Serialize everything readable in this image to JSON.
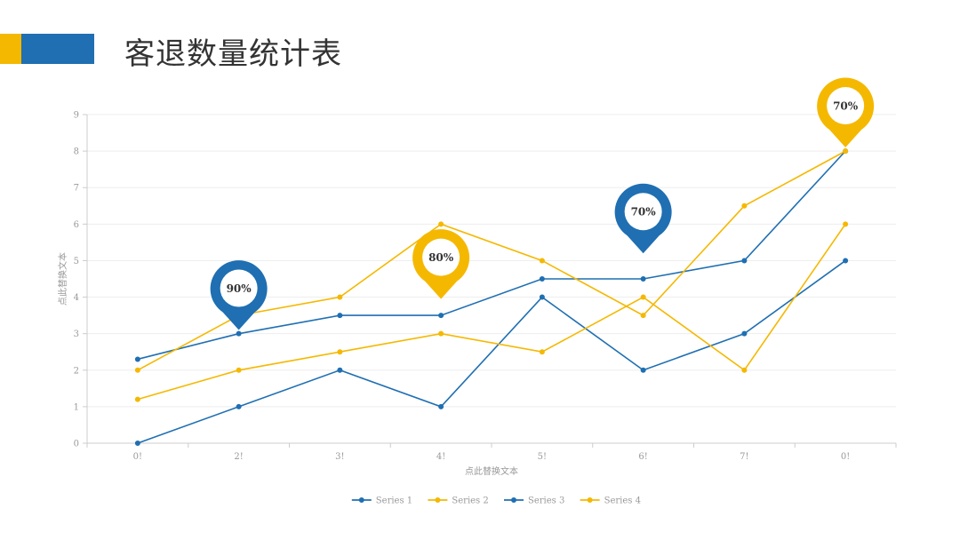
{
  "page": {
    "title": "客退数量统计表",
    "accent_colors": [
      "#F5B800",
      "#1F6FB2"
    ]
  },
  "chart_data": {
    "type": "line",
    "categories": [
      "0!",
      "2!",
      "3!",
      "4!",
      "5!",
      "6!",
      "7!",
      "0!"
    ],
    "xlabel": "点此替换文本",
    "ylabel": "点此替换文本",
    "ylim": [
      0,
      9
    ],
    "yticks": [
      0,
      1,
      2,
      3,
      4,
      5,
      6,
      7,
      8,
      9
    ],
    "grid": true,
    "legend_position": "bottom",
    "series": [
      {
        "name": "Series 1",
        "color": "#1F6FB2",
        "values": [
          0,
          1,
          2,
          1,
          4,
          2,
          3,
          5
        ]
      },
      {
        "name": "Series 2",
        "color": "#F5B800",
        "values": [
          1.2,
          2,
          2.5,
          3,
          2.5,
          4,
          2,
          6
        ]
      },
      {
        "name": "Series 3",
        "color": "#1F6FB2",
        "values": [
          2.3,
          3,
          3.5,
          3.5,
          4.5,
          4.5,
          5,
          8
        ]
      },
      {
        "name": "Series 4",
        "color": "#F5B800",
        "values": [
          2,
          3.5,
          4,
          6,
          5,
          3.5,
          6.5,
          8
        ]
      }
    ],
    "annotations": [
      {
        "text": "90%",
        "category_index": 1,
        "y": 3.1,
        "color": "#1F6FB2"
      },
      {
        "text": "80%",
        "category_index": 3,
        "y": 3.95,
        "color": "#F5B800"
      },
      {
        "text": "70%",
        "category_index": 5,
        "y": 5.2,
        "color": "#1F6FB2"
      },
      {
        "text": "70%",
        "category_index": 7,
        "y": 8.1,
        "color": "#F5B800"
      }
    ]
  }
}
